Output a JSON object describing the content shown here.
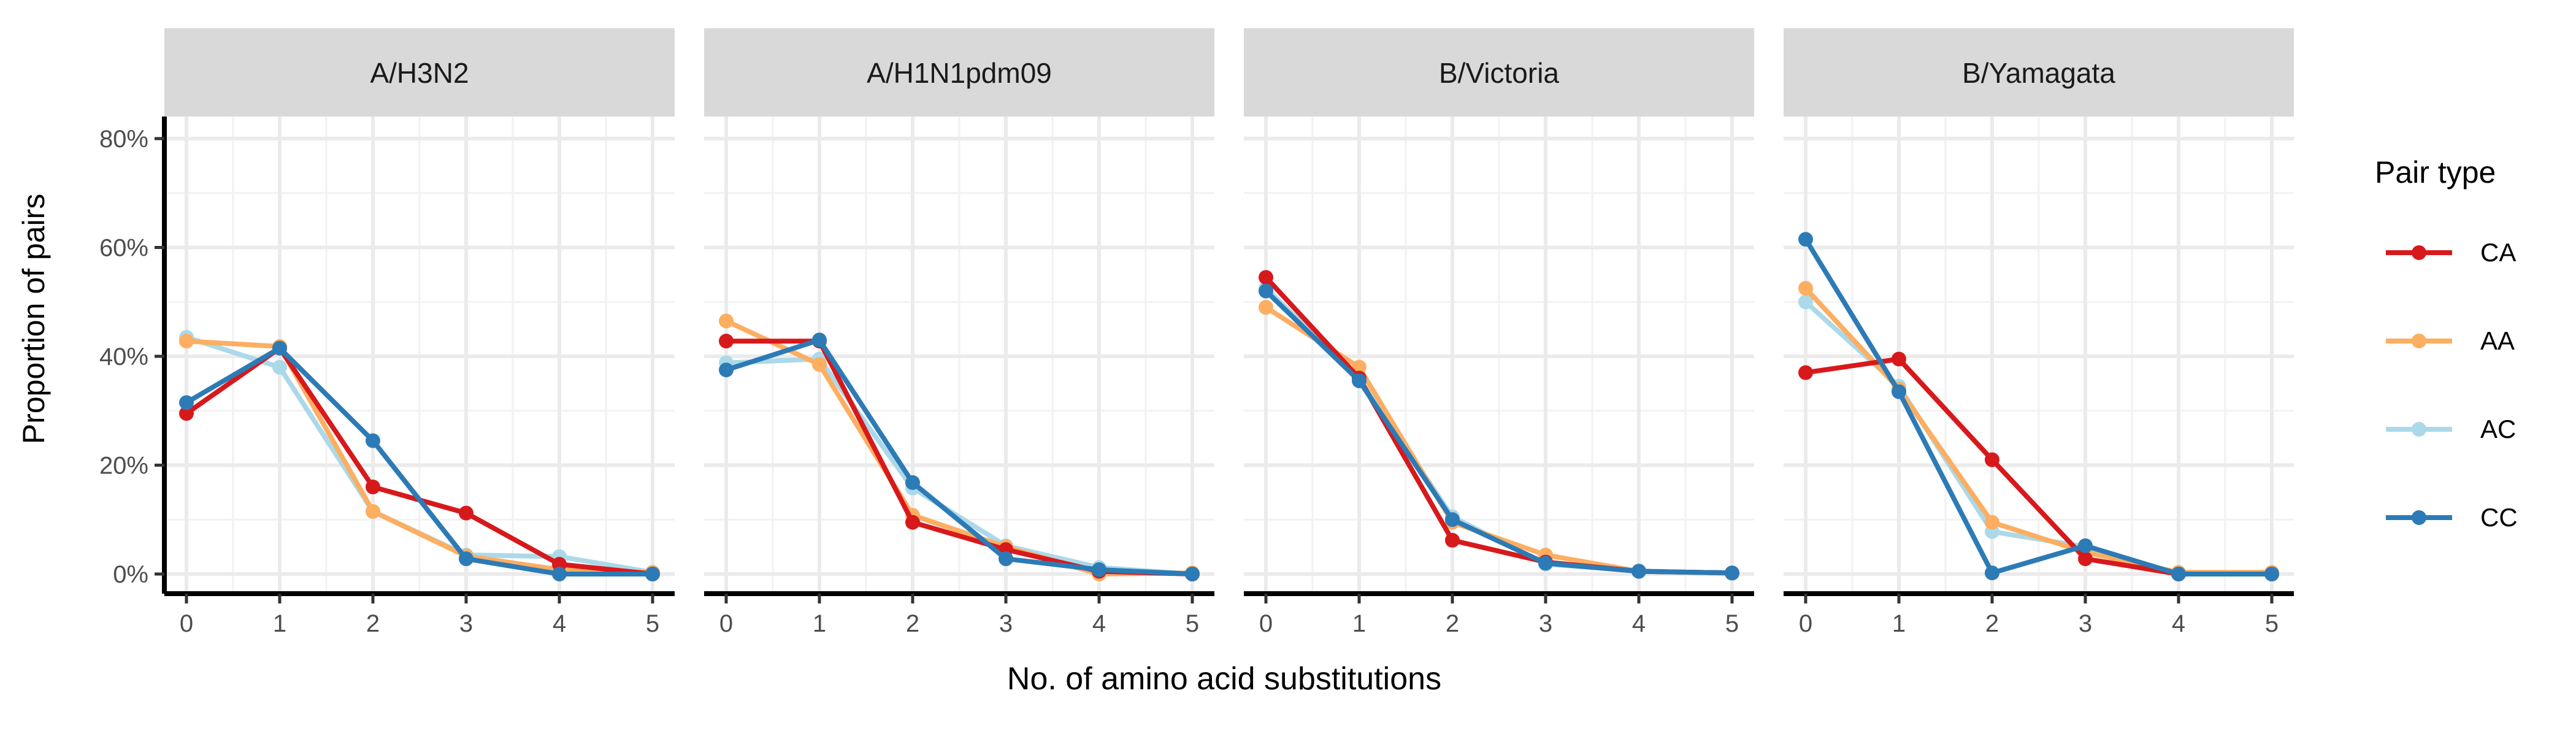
{
  "chart_data": {
    "type": "line",
    "facets": [
      "A/H3N2",
      "A/H1N1pdm09",
      "B/Victoria",
      "B/Yamagata"
    ],
    "x": [
      0,
      1,
      2,
      3,
      4,
      5
    ],
    "xlabel": "No. of amino acid substitutions",
    "ylabel": "Proportion of pairs",
    "ylim": [
      0,
      80
    ],
    "y_ticks": [
      "0%",
      "20%",
      "40%",
      "60%",
      "80%"
    ],
    "y_tick_values": [
      0,
      20,
      40,
      60,
      80
    ],
    "grid": true,
    "legend": {
      "title": "Pair type",
      "placement": "right",
      "entries": [
        "CA",
        "AA",
        "AC",
        "CC"
      ]
    },
    "colors": {
      "CA": "#d7191c",
      "AA": "#fdae61",
      "AC": "#abd9e9",
      "CC": "#2c7bb6"
    },
    "panels": [
      {
        "facet": "A/H3N2",
        "series": [
          {
            "name": "CA",
            "values": [
              29.5,
              41.5,
              16.0,
              11.2,
              1.8,
              0.0
            ]
          },
          {
            "name": "AA",
            "values": [
              42.8,
              41.8,
              11.5,
              3.3,
              0.8,
              0.3
            ]
          },
          {
            "name": "AC",
            "values": [
              43.5,
              38.0,
              11.5,
              3.5,
              3.2,
              0.3
            ]
          },
          {
            "name": "CC",
            "values": [
              31.5,
              41.5,
              24.5,
              2.8,
              0.0,
              0.0
            ]
          }
        ]
      },
      {
        "facet": "A/H1N1pdm09",
        "series": [
          {
            "name": "CA",
            "values": [
              42.8,
              42.8,
              9.5,
              4.5,
              0.5,
              0.0
            ]
          },
          {
            "name": "AA",
            "values": [
              46.5,
              38.5,
              10.8,
              5.0,
              0.0,
              0.2
            ]
          },
          {
            "name": "AC",
            "values": [
              38.8,
              39.5,
              15.8,
              5.2,
              1.2,
              0.0
            ]
          },
          {
            "name": "CC",
            "values": [
              37.5,
              43.0,
              16.8,
              2.8,
              0.8,
              0.0
            ]
          }
        ]
      },
      {
        "facet": "B/Victoria",
        "series": [
          {
            "name": "CA",
            "values": [
              54.5,
              36.0,
              6.2,
              2.2,
              0.5,
              0.2
            ]
          },
          {
            "name": "AA",
            "values": [
              49.0,
              38.0,
              9.5,
              3.5,
              0.5,
              0.2
            ]
          },
          {
            "name": "AC",
            "values": [
              52.5,
              36.0,
              10.5,
              1.8,
              0.6,
              0.1
            ]
          },
          {
            "name": "CC",
            "values": [
              52.0,
              35.5,
              10.0,
              2.0,
              0.5,
              0.2
            ]
          }
        ]
      },
      {
        "facet": "B/Yamagata",
        "series": [
          {
            "name": "CA",
            "values": [
              37.0,
              39.5,
              21.0,
              2.8,
              0.0,
              0.0
            ]
          },
          {
            "name": "AA",
            "values": [
              52.5,
              34.0,
              9.5,
              4.0,
              0.3,
              0.3
            ]
          },
          {
            "name": "AC",
            "values": [
              50.0,
              34.5,
              7.8,
              5.0,
              0.0,
              0.0
            ]
          },
          {
            "name": "CC",
            "values": [
              61.5,
              33.5,
              0.2,
              5.2,
              0.0,
              0.0
            ]
          }
        ]
      }
    ]
  }
}
